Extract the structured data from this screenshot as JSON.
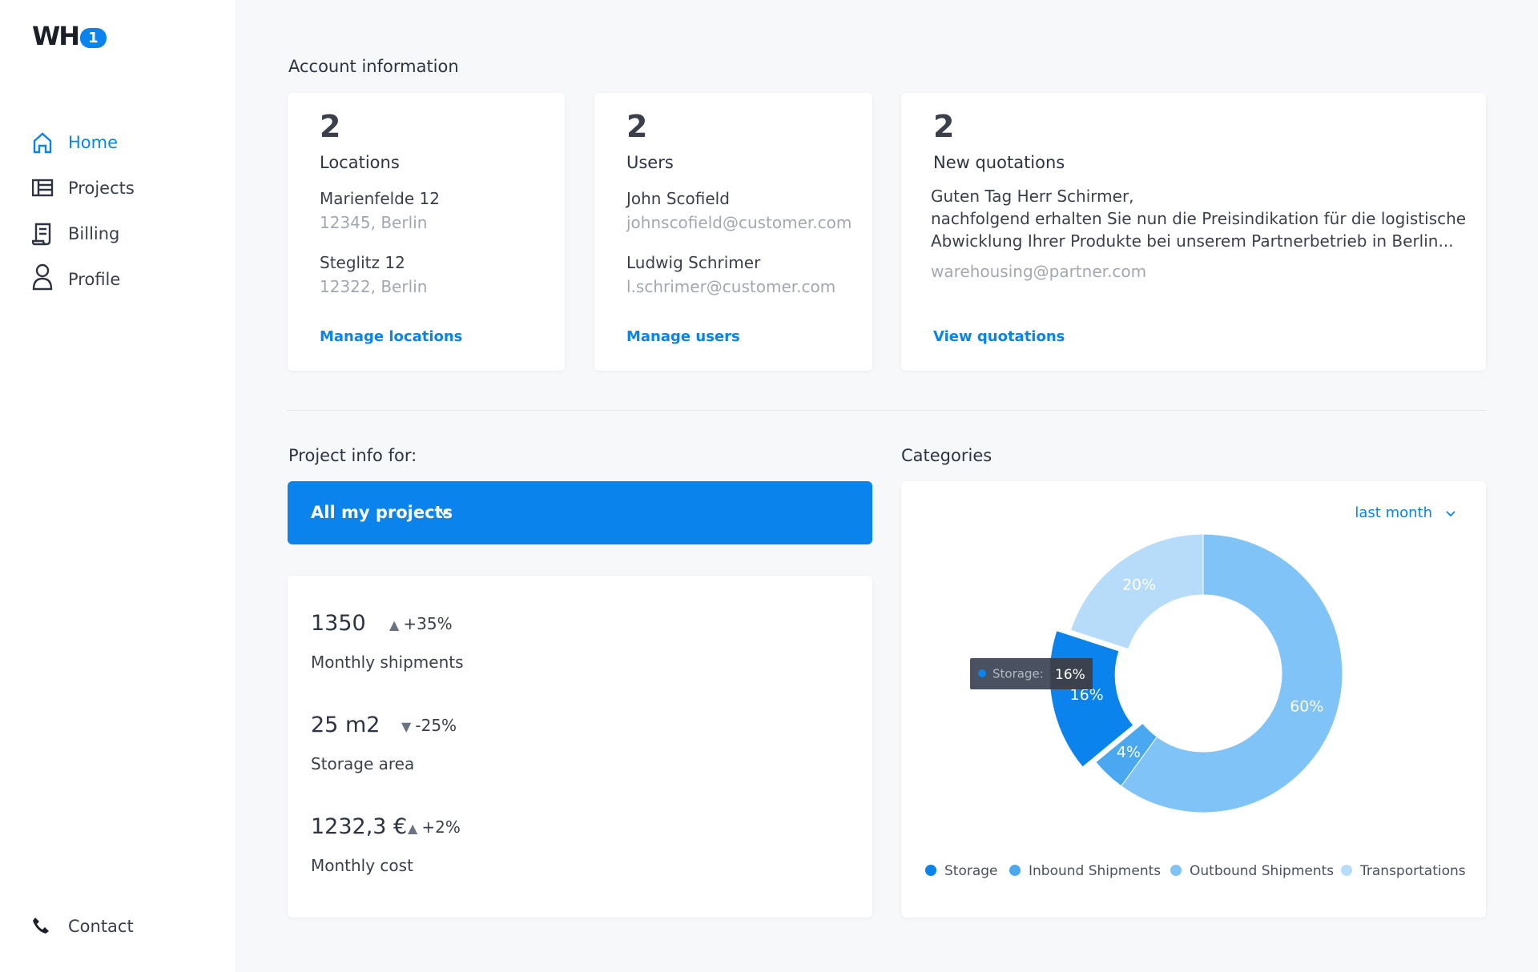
{
  "logo": {
    "text": "WH",
    "badge": "1"
  },
  "nav": [
    "Home",
    "Projects",
    "Billing",
    "Profile"
  ],
  "contact": "Contact",
  "account": {
    "title": "Account information",
    "locations": {
      "count": "2",
      "label": "Locations",
      "items": [
        {
          "name": "Marienfelde 12",
          "detail": "12345, Berlin"
        },
        {
          "name": "Steglitz 12",
          "detail": "12322, Berlin"
        }
      ],
      "link": "Manage locations"
    },
    "users": {
      "count": "2",
      "label": "Users",
      "items": [
        {
          "name": "John Scofield",
          "detail": "johnscofield@customer.com"
        },
        {
          "name": "Ludwig Schrimer",
          "detail": "l.schrimer@customer.com"
        }
      ],
      "link": "Manage users"
    },
    "quotations": {
      "count": "2",
      "label": "New quotations",
      "lines": [
        "Guten Tag Herr Schirmer,",
        "nachfolgend erhalten Sie nun die Preisindikation für die logistische",
        "Abwicklung Ihrer Produkte bei unserem Partnerbetrieb in Berlin..."
      ],
      "email": "warehousing@partner.com",
      "link": "View quotations"
    }
  },
  "project": {
    "title": "Project info for:",
    "selector": "All my projects",
    "stats": [
      {
        "value": "1350",
        "change": "+35%",
        "trend": "up",
        "label": "Monthly shipments"
      },
      {
        "value": "25 m2",
        "change": "-25%",
        "trend": "down",
        "label": "Storage area"
      },
      {
        "value": "1232,3 €",
        "change": "+2%",
        "trend": "up",
        "label": "Monthly cost"
      }
    ]
  },
  "chart_data": {
    "type": "pie",
    "donut": true,
    "title": "Categories",
    "period": "last month",
    "categories": [
      "Storage",
      "Inbound Shipments",
      "Outbound Shipments",
      "Transportations"
    ],
    "values": [
      16,
      4,
      60,
      20
    ],
    "value_labels": [
      "16%",
      "4%",
      "60%",
      "20%"
    ],
    "colors": [
      "#0a84ec",
      "#4aa8f0",
      "#7fc3f7",
      "#b6dcfa"
    ],
    "highlight": 0,
    "tooltip": {
      "label": "Storage:",
      "value": "16%"
    }
  }
}
